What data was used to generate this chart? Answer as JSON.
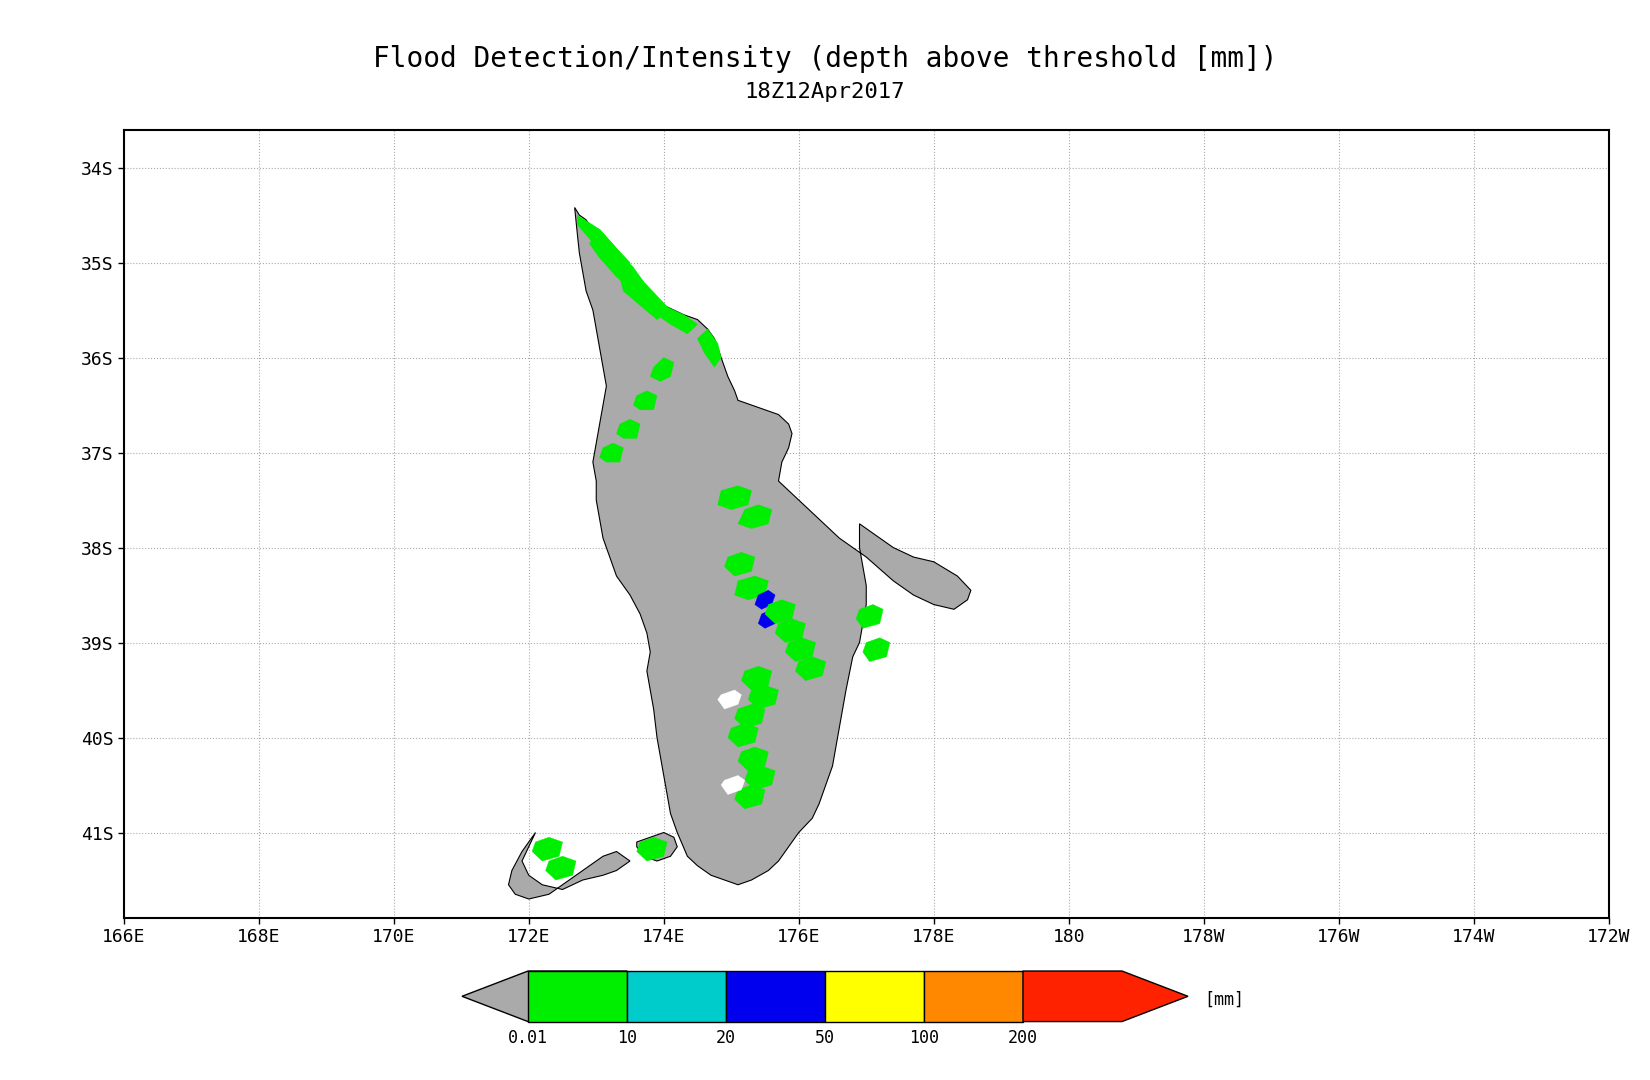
{
  "title_line1": "Flood Detection/Intensity (depth above threshold [mm])",
  "title_line2": "18Z12Apr2017",
  "title_fontsize": 20,
  "subtitle_fontsize": 16,
  "bg_color": "#ffffff",
  "lon_min": 166,
  "lon_max": 188,
  "lat_min": -41.9,
  "lat_max": -33.6,
  "xticks": [
    166,
    168,
    170,
    172,
    174,
    176,
    178,
    180,
    182,
    184,
    186,
    188
  ],
  "xtick_labels": [
    "166E",
    "168E",
    "170E",
    "172E",
    "174E",
    "176E",
    "178E",
    "180",
    "178W",
    "176W",
    "174W",
    "172W"
  ],
  "yticks": [
    -34,
    -35,
    -36,
    -37,
    -38,
    -39,
    -40,
    -41
  ],
  "ytick_labels": [
    "34S",
    "35S",
    "36S",
    "37S",
    "38S",
    "39S",
    "40S",
    "41S"
  ],
  "grid_color": "#aaaaaa",
  "axis_label_fontsize": 13,
  "land_color": "#aaaaaa",
  "flood_green": "#00ee00",
  "flood_cyan": "#00cccc",
  "flood_blue": "#0000ee",
  "flood_white": "#ffffff",
  "colorbar_colors": [
    "#aaaaaa",
    "#00ee00",
    "#00cccc",
    "#0000ee",
    "#ffff00",
    "#ff8800",
    "#ff2200"
  ],
  "colorbar_labels": [
    "0.01",
    "10",
    "20",
    "50",
    "100",
    "200"
  ],
  "colorbar_unit": "[mm]"
}
